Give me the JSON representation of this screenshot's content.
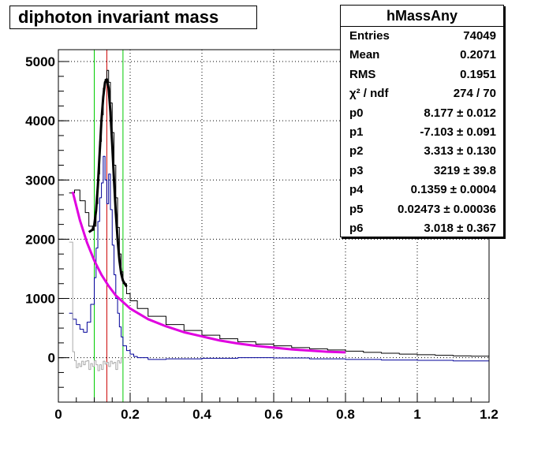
{
  "chart_data": {
    "type": "line",
    "title": "diphoton invariant mass",
    "xlim": [
      0,
      1.2
    ],
    "ylim": [
      -750,
      5200
    ],
    "x_ticks": [
      {
        "v": 0,
        "label": "0"
      },
      {
        "v": 0.2,
        "label": "0.2"
      },
      {
        "v": 0.4,
        "label": "0.4"
      },
      {
        "v": 0.6,
        "label": "0.6"
      },
      {
        "v": 0.8,
        "label": "0.8"
      },
      {
        "v": 1.0,
        "label": "1"
      },
      {
        "v": 1.2,
        "label": "1.2"
      }
    ],
    "y_ticks": [
      {
        "v": 0,
        "label": "0"
      },
      {
        "v": 1000,
        "label": "1000"
      },
      {
        "v": 2000,
        "label": "2000"
      },
      {
        "v": 3000,
        "label": "3000"
      },
      {
        "v": 4000,
        "label": "4000"
      },
      {
        "v": 5000,
        "label": "5000"
      }
    ],
    "grid": true,
    "vertical_markers": [
      {
        "x": 0.1,
        "color": "#00cc00"
      },
      {
        "x": 0.135,
        "color": "#cc0000"
      },
      {
        "x": 0.18,
        "color": "#00cc00"
      }
    ],
    "series": [
      {
        "color": "#000000",
        "style": "step",
        "points": [
          [
            0.03,
            2780
          ],
          [
            0.045,
            2830
          ],
          [
            0.06,
            2650
          ],
          [
            0.075,
            2450
          ],
          [
            0.085,
            2220
          ],
          [
            0.095,
            2150
          ],
          [
            0.1,
            2220
          ],
          [
            0.105,
            2600
          ],
          [
            0.11,
            3100
          ],
          [
            0.115,
            3650
          ],
          [
            0.12,
            4100
          ],
          [
            0.125,
            4550
          ],
          [
            0.13,
            4700
          ],
          [
            0.135,
            4850
          ],
          [
            0.14,
            4650
          ],
          [
            0.145,
            4300
          ],
          [
            0.15,
            3800
          ],
          [
            0.155,
            3250
          ],
          [
            0.16,
            2700
          ],
          [
            0.165,
            2200
          ],
          [
            0.17,
            1750
          ],
          [
            0.175,
            1450
          ],
          [
            0.18,
            1250
          ],
          [
            0.19,
            1080
          ],
          [
            0.2,
            960
          ],
          [
            0.22,
            830
          ],
          [
            0.25,
            700
          ],
          [
            0.3,
            560
          ],
          [
            0.35,
            460
          ],
          [
            0.4,
            380
          ],
          [
            0.45,
            320
          ],
          [
            0.5,
            270
          ],
          [
            0.55,
            230
          ],
          [
            0.6,
            200
          ],
          [
            0.65,
            170
          ],
          [
            0.7,
            150
          ],
          [
            0.75,
            130
          ],
          [
            0.8,
            110
          ],
          [
            0.85,
            90
          ],
          [
            0.9,
            75
          ],
          [
            0.95,
            60
          ],
          [
            1.0,
            50
          ],
          [
            1.05,
            40
          ],
          [
            1.1,
            30
          ],
          [
            1.15,
            25
          ],
          [
            1.2,
            20
          ]
        ]
      },
      {
        "color": "#000099",
        "style": "step",
        "points": [
          [
            0.03,
            750
          ],
          [
            0.04,
            650
          ],
          [
            0.05,
            560
          ],
          [
            0.06,
            480
          ],
          [
            0.07,
            430
          ],
          [
            0.08,
            600
          ],
          [
            0.09,
            900
          ],
          [
            0.1,
            1350
          ],
          [
            0.105,
            1850
          ],
          [
            0.11,
            2300
          ],
          [
            0.115,
            2700
          ],
          [
            0.12,
            2950
          ],
          [
            0.125,
            3400
          ],
          [
            0.13,
            3000
          ],
          [
            0.135,
            2600
          ],
          [
            0.14,
            3100
          ],
          [
            0.145,
            2500
          ],
          [
            0.15,
            1900
          ],
          [
            0.155,
            1400
          ],
          [
            0.16,
            1000
          ],
          [
            0.165,
            750
          ],
          [
            0.17,
            520
          ],
          [
            0.175,
            350
          ],
          [
            0.18,
            200
          ],
          [
            0.19,
            120
          ],
          [
            0.2,
            60
          ],
          [
            0.21,
            20
          ],
          [
            0.22,
            0
          ],
          [
            0.25,
            -30
          ],
          [
            0.3,
            -20
          ],
          [
            0.4,
            -10
          ],
          [
            0.5,
            0
          ],
          [
            0.6,
            -5
          ],
          [
            0.7,
            -20
          ],
          [
            0.8,
            -30
          ],
          [
            0.9,
            -40
          ],
          [
            1.0,
            -45
          ],
          [
            1.1,
            -55
          ],
          [
            1.2,
            -70
          ]
        ]
      },
      {
        "color": "#aaaaaa",
        "style": "step",
        "points": [
          [
            0.03,
            1950
          ],
          [
            0.035,
            1950
          ],
          [
            0.04,
            100
          ],
          [
            0.045,
            -50
          ],
          [
            0.05,
            -170
          ],
          [
            0.055,
            -100
          ],
          [
            0.06,
            -150
          ],
          [
            0.065,
            -60
          ],
          [
            0.07,
            -120
          ],
          [
            0.075,
            -60
          ],
          [
            0.08,
            -50
          ],
          [
            0.085,
            -200
          ],
          [
            0.09,
            -100
          ],
          [
            0.095,
            -150
          ],
          [
            0.1,
            -50
          ],
          [
            0.105,
            -120
          ],
          [
            0.11,
            -220
          ],
          [
            0.115,
            -120
          ],
          [
            0.12,
            -200
          ],
          [
            0.125,
            -60
          ],
          [
            0.13,
            -110
          ],
          [
            0.135,
            -80
          ],
          [
            0.14,
            -150
          ],
          [
            0.145,
            -60
          ],
          [
            0.15,
            -100
          ],
          [
            0.155,
            -80
          ],
          [
            0.16,
            -200
          ],
          [
            0.165,
            -50
          ],
          [
            0.17,
            -90
          ],
          [
            0.175,
            0
          ]
        ]
      },
      {
        "color": "#000000",
        "style": "line",
        "width": 3,
        "points": [
          [
            0.085,
            2120
          ],
          [
            0.095,
            2160
          ],
          [
            0.1,
            2240
          ],
          [
            0.105,
            2480
          ],
          [
            0.11,
            2900
          ],
          [
            0.115,
            3450
          ],
          [
            0.12,
            4000
          ],
          [
            0.125,
            4400
          ],
          [
            0.13,
            4650
          ],
          [
            0.135,
            4700
          ],
          [
            0.14,
            4550
          ],
          [
            0.145,
            4150
          ],
          [
            0.15,
            3600
          ],
          [
            0.155,
            3000
          ],
          [
            0.16,
            2450
          ],
          [
            0.165,
            2000
          ],
          [
            0.17,
            1650
          ],
          [
            0.175,
            1420
          ],
          [
            0.18,
            1300
          ],
          [
            0.19,
            1200
          ]
        ]
      },
      {
        "color": "#e000e0",
        "style": "line",
        "width": 3,
        "points": [
          [
            0.04,
            2800
          ],
          [
            0.06,
            2320
          ],
          [
            0.08,
            1940
          ],
          [
            0.1,
            1640
          ],
          [
            0.12,
            1400
          ],
          [
            0.14,
            1210
          ],
          [
            0.16,
            1050
          ],
          [
            0.2,
            830
          ],
          [
            0.25,
            650
          ],
          [
            0.3,
            530
          ],
          [
            0.35,
            430
          ],
          [
            0.4,
            360
          ],
          [
            0.45,
            290
          ],
          [
            0.5,
            240
          ],
          [
            0.55,
            200
          ],
          [
            0.6,
            170
          ],
          [
            0.65,
            140
          ],
          [
            0.7,
            120
          ],
          [
            0.75,
            100
          ],
          [
            0.8,
            90
          ]
        ]
      }
    ]
  },
  "stats": {
    "title": "hMassAny",
    "rows": [
      {
        "key": "Entries",
        "value": "74049"
      },
      {
        "key": "Mean",
        "value": "0.2071"
      },
      {
        "key": "RMS",
        "value": "0.1951"
      },
      {
        "key": "χ² / ndf",
        "value": "274 / 70"
      },
      {
        "key": "p0",
        "value": "8.177 ± 0.012"
      },
      {
        "key": "p1",
        "value": "-7.103 ± 0.091"
      },
      {
        "key": "p2",
        "value": "3.313 ± 0.130"
      },
      {
        "key": "p3",
        "value": "3219 ± 39.8"
      },
      {
        "key": "p4",
        "value": "0.1359 ± 0.0004"
      },
      {
        "key": "p5",
        "value": "0.02473 ± 0.00036"
      },
      {
        "key": "p6",
        "value": "3.018 ± 0.367"
      }
    ]
  },
  "colors": {
    "frame": "#000000",
    "grid": "#000000"
  }
}
